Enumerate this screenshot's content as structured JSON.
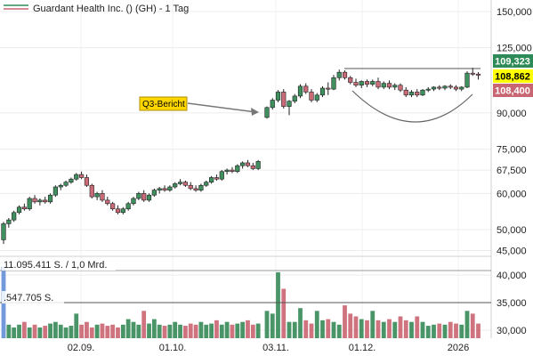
{
  "chart_data": {
    "type": "candlestick",
    "title": "Guardant Health Inc. () (GH) - 1 Tag",
    "price_axis": {
      "scale": "log",
      "ylim": [
        43000,
        152000
      ],
      "ticks": [
        "150,000",
        "125,000",
        "90,000",
        "75,000",
        "67,500",
        "60,000",
        "50,000",
        "45,000"
      ],
      "tick_values": [
        150000,
        125000,
        90000,
        75000,
        67500,
        60000,
        50000,
        45000
      ]
    },
    "volume_axis": {
      "ylim": [
        29000,
        42000
      ],
      "ticks": [
        "40,000",
        "35,000",
        "30,000"
      ],
      "tick_values": [
        40000,
        35000,
        30000
      ]
    },
    "x_tick_labels": [
      "02.09.",
      "01.10.",
      "03.11.",
      "01.12.",
      "2026"
    ],
    "price_labels": [
      {
        "text": "109,323",
        "value": 109323,
        "color": "#2e8b57",
        "text_color": "#ffffff"
      },
      {
        "text": "108,862",
        "value": 108862,
        "color": "#ffff00",
        "text_color": "#000000"
      },
      {
        "text": "108,400",
        "value": 108400,
        "color": "#c96673",
        "text_color": "#ffffff"
      }
    ],
    "annotations": [
      {
        "text": "Q3-Bericht"
      }
    ],
    "volume_labels": [
      "11.095.411 S. / 1,0 Mrd.",
      ".547.705 S."
    ],
    "series": [
      {
        "values": [
          [
            47500,
            52000,
            46500,
            51500
          ],
          [
            51500,
            53000,
            50500,
            52500
          ],
          [
            52500,
            55000,
            52000,
            54500
          ],
          [
            54500,
            56500,
            54000,
            56000
          ],
          [
            56000,
            57000,
            55000,
            55500
          ],
          [
            55500,
            59000,
            55000,
            58500
          ],
          [
            58500,
            59500,
            57000,
            57500
          ],
          [
            57500,
            58500,
            56500,
            58000
          ],
          [
            58000,
            59000,
            57000,
            57500
          ],
          [
            57500,
            60000,
            57000,
            59500
          ],
          [
            59500,
            62500,
            59000,
            62000
          ],
          [
            62000,
            63000,
            61000,
            62500
          ],
          [
            62500,
            64000,
            62000,
            63500
          ],
          [
            63500,
            65000,
            63000,
            64500
          ],
          [
            64500,
            66500,
            64000,
            66000
          ],
          [
            66000,
            67000,
            64500,
            65000
          ],
          [
            65000,
            66000,
            62000,
            62500
          ],
          [
            62500,
            63000,
            58500,
            59000
          ],
          [
            59000,
            60500,
            58000,
            60000
          ],
          [
            60000,
            61000,
            57500,
            58000
          ],
          [
            58000,
            59000,
            56500,
            57000
          ],
          [
            57000,
            57500,
            55000,
            55500
          ],
          [
            55500,
            56500,
            54000,
            54500
          ],
          [
            54500,
            56000,
            54000,
            55500
          ],
          [
            55500,
            57500,
            55000,
            57000
          ],
          [
            57000,
            59000,
            56500,
            58500
          ],
          [
            58500,
            60500,
            58000,
            60000
          ],
          [
            60000,
            61000,
            57500,
            58000
          ],
          [
            58000,
            60000,
            57500,
            59500
          ],
          [
            59500,
            61500,
            59000,
            61000
          ],
          [
            61000,
            62000,
            60000,
            61500
          ],
          [
            61500,
            62500,
            60500,
            61000
          ],
          [
            61000,
            62500,
            60500,
            62000
          ],
          [
            62000,
            63500,
            61500,
            63000
          ],
          [
            63000,
            64500,
            62500,
            63500
          ],
          [
            63500,
            64000,
            62000,
            62500
          ],
          [
            62500,
            63500,
            61000,
            61500
          ],
          [
            61500,
            62500,
            60500,
            61000
          ],
          [
            61000,
            63000,
            60500,
            62500
          ],
          [
            62500,
            64000,
            62000,
            63500
          ],
          [
            63500,
            65500,
            63000,
            65000
          ],
          [
            65000,
            66000,
            64000,
            64500
          ],
          [
            64500,
            67500,
            64000,
            67000
          ],
          [
            67000,
            68000,
            66000,
            67500
          ],
          [
            67500,
            68500,
            66500,
            67000
          ],
          [
            67000,
            69500,
            66500,
            69000
          ],
          [
            69000,
            70500,
            68000,
            70000
          ],
          [
            70000,
            71000,
            68500,
            69000
          ],
          [
            69000,
            70000,
            67500,
            68000
          ],
          [
            68000,
            71000,
            67500,
            70500
          ],
          [
            88000,
            93000,
            87500,
            92500
          ],
          [
            92500,
            97000,
            91500,
            96000
          ],
          [
            96000,
            101000,
            95000,
            100000
          ],
          [
            100000,
            101500,
            92000,
            93000
          ],
          [
            93000,
            96000,
            89000,
            95500
          ],
          [
            95500,
            99000,
            94500,
            98000
          ],
          [
            98000,
            104000,
            97000,
            103000
          ],
          [
            103000,
            104500,
            99000,
            100000
          ],
          [
            100000,
            101500,
            95000,
            96000
          ],
          [
            96000,
            99500,
            95000,
            98500
          ],
          [
            98500,
            103000,
            97500,
            102000
          ],
          [
            102000,
            105000,
            98500,
            101500
          ],
          [
            101500,
            109000,
            101000,
            107500
          ],
          [
            107500,
            112000,
            106000,
            110500
          ],
          [
            110500,
            111500,
            106500,
            107500
          ],
          [
            107500,
            108500,
            104000,
            105000
          ],
          [
            105000,
            107000,
            102500,
            103500
          ],
          [
            103500,
            106000,
            102000,
            105500
          ],
          [
            105500,
            106500,
            102500,
            104000
          ],
          [
            104000,
            106500,
            103000,
            105500
          ],
          [
            105500,
            107500,
            101500,
            102500
          ],
          [
            102500,
            105500,
            101500,
            104500
          ],
          [
            104500,
            106000,
            101500,
            102500
          ],
          [
            102500,
            104500,
            101000,
            103500
          ],
          [
            103500,
            104500,
            100000,
            101000
          ],
          [
            101000,
            102500,
            97500,
            98500
          ],
          [
            98500,
            101000,
            97500,
            100000
          ],
          [
            100000,
            101500,
            97500,
            98500
          ],
          [
            98500,
            101500,
            98000,
            101000
          ],
          [
            101000,
            102500,
            100000,
            101500
          ],
          [
            101500,
            103000,
            100500,
            102500
          ],
          [
            102500,
            103500,
            101000,
            102000
          ],
          [
            102000,
            103500,
            101000,
            103000
          ],
          [
            103000,
            104000,
            101500,
            102500
          ],
          [
            102500,
            103500,
            100500,
            101500
          ],
          [
            101500,
            103000,
            100500,
            102500
          ],
          [
            102500,
            111000,
            102000,
            110000
          ],
          [
            110000,
            113000,
            108500,
            109500
          ],
          [
            109500,
            110500,
            106500,
            108862
          ]
        ]
      }
    ],
    "volumes": [
      41500,
      31000,
      30500,
      31000,
      31500,
      30500,
      31000,
      30500,
      30800,
      31200,
      31500,
      31000,
      30500,
      30800,
      33000,
      31000,
      31500,
      30500,
      31000,
      31200,
      30800,
      31000,
      30500,
      31000,
      32000,
      31500,
      31000,
      33500,
      31200,
      32000,
      31000,
      30800,
      31000,
      31500,
      31000,
      30800,
      31200,
      31000,
      31500,
      31000,
      31200,
      31800,
      31000,
      31500,
      31000,
      31200,
      31500,
      31800,
      31000,
      31200,
      33500,
      33000,
      40500,
      37500,
      31500,
      31500,
      34000,
      31800,
      31200,
      33500,
      31800,
      32000,
      31500,
      31000,
      34500,
      33000,
      32500,
      32000,
      31800,
      33500,
      31800,
      31500,
      32000,
      31500,
      32500,
      31800,
      31500,
      32500,
      31500,
      30800,
      31000,
      31200,
      31000,
      31500,
      31200,
      31000,
      33500,
      33000,
      31200
    ],
    "volume_bar_colors": [
      "#6a95d8"
    ],
    "overlays": [
      "resistance-line",
      "rounding-bottom-arc",
      "volume-average-line"
    ]
  }
}
